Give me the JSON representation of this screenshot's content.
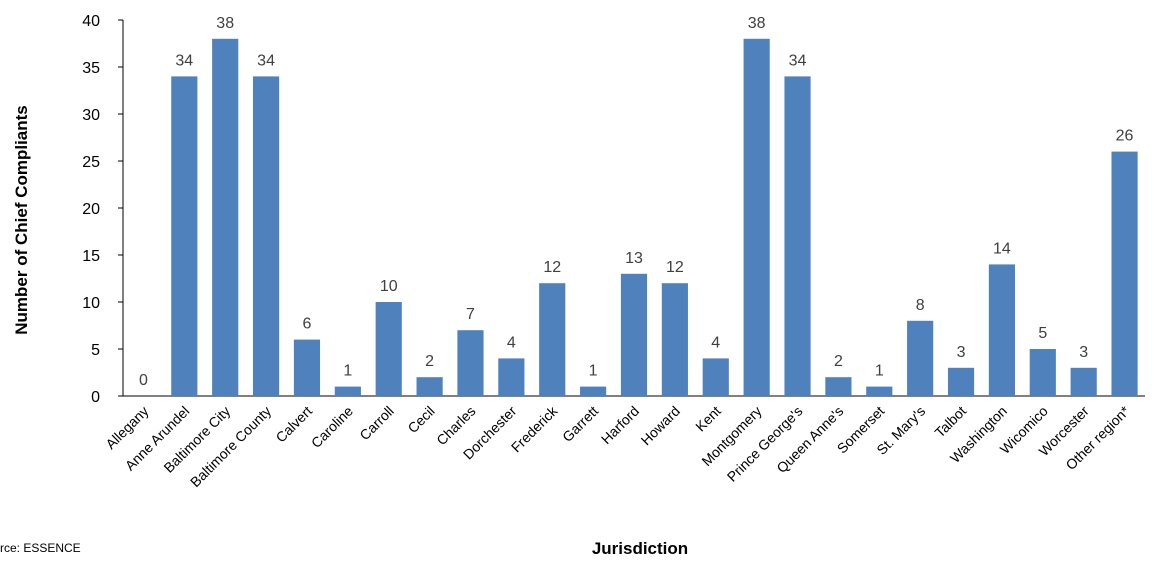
{
  "chart_data": {
    "type": "bar",
    "categories": [
      "Allegany",
      "Anne Arundel",
      "Baltimore City",
      "Baltimore County",
      "Calvert",
      "Caroline",
      "Carroll",
      "Cecil",
      "Charles",
      "Dorchester",
      "Frederick",
      "Garrett",
      "Harford",
      "Howard",
      "Kent",
      "Montgomery",
      "Prince George's",
      "Queen Anne's",
      "Somerset",
      "St. Mary's",
      "Talbot",
      "Washington",
      "Wicomico",
      "Worcester",
      "Other region*"
    ],
    "values": [
      0,
      34,
      38,
      34,
      6,
      1,
      10,
      2,
      7,
      4,
      12,
      1,
      13,
      12,
      4,
      38,
      34,
      2,
      1,
      8,
      3,
      14,
      5,
      3,
      26
    ],
    "title": "",
    "xlabel": "Jurisdiction",
    "ylabel": "Number of Chief Compliants",
    "ylim": [
      0,
      40
    ],
    "yticks": [
      "0",
      "5",
      "10",
      "15",
      "20",
      "25",
      "30",
      "35",
      "40"
    ],
    "bar_color": "#4F81BD",
    "grid": false,
    "data_labels": true
  },
  "source": "rce: ESSENCE"
}
